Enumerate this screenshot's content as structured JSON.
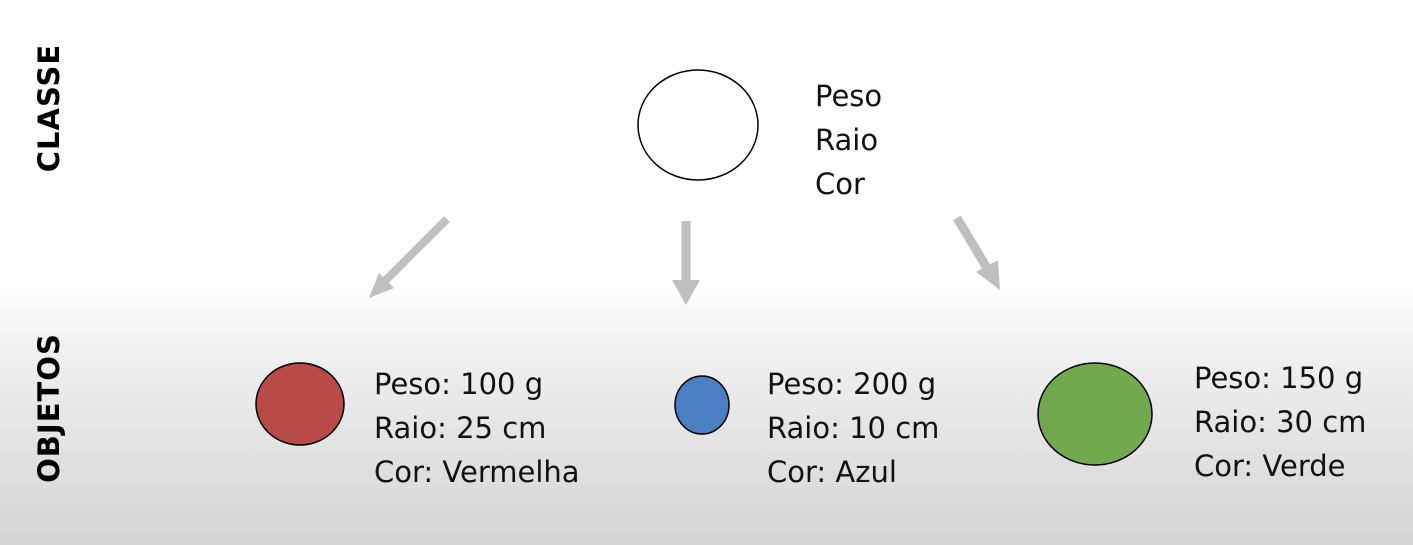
{
  "labels": {
    "classe": "CLASSE",
    "objetos": "OBJETOS"
  },
  "class": {
    "attributes": [
      "Peso",
      "Raio",
      "Cor"
    ],
    "fill": "#ffffff"
  },
  "objects": [
    {
      "id": "red",
      "fill": "#b84a48",
      "attributes": [
        "Peso: 100 g",
        "Raio: 25 cm",
        "Cor: Vermelha"
      ]
    },
    {
      "id": "blue",
      "fill": "#4a7fc4",
      "attributes": [
        "Peso: 200 g",
        "Raio: 10 cm",
        "Cor: Azul"
      ]
    },
    {
      "id": "green",
      "fill": "#72a84e",
      "attributes": [
        "Peso: 150 g",
        "Raio: 30 cm",
        "Cor: Verde"
      ]
    }
  ],
  "colors": {
    "arrow": "#bfbfbf",
    "outline": "#000000"
  }
}
